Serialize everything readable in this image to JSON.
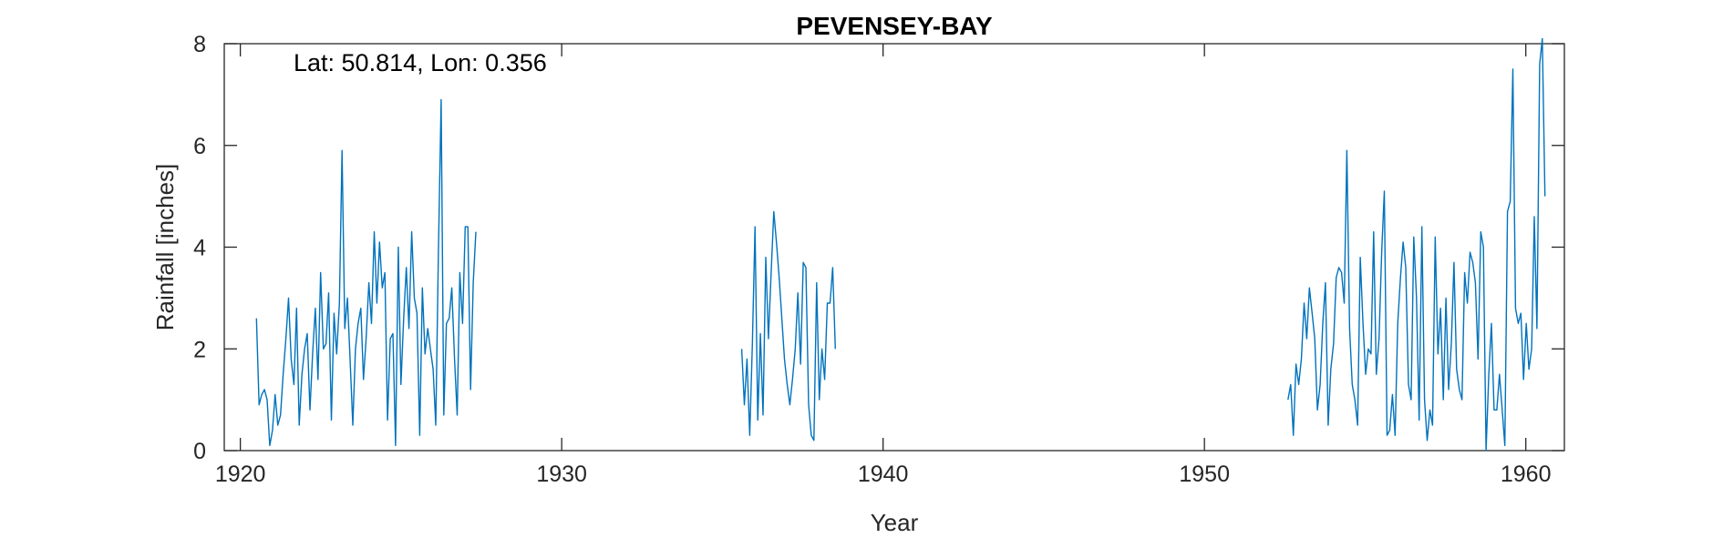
{
  "chart_data": {
    "type": "line",
    "title": "PEVENSEY-BAY",
    "xlabel": "Year",
    "ylabel": "Rainfall [inches]",
    "annotation": "Lat: 50.814, Lon: 0.356",
    "xlim": [
      1919.5,
      1961.2
    ],
    "ylim": [
      0,
      8
    ],
    "x_ticks": [
      1920,
      1930,
      1940,
      1950,
      1960
    ],
    "y_ticks": [
      0,
      2,
      4,
      6,
      8
    ],
    "grid": false,
    "legend": "none",
    "line_color": "#0072BD",
    "series": [
      {
        "segments": [
          {
            "start": 1920.5,
            "step": 0.0833,
            "values": [
              2.6,
              0.9,
              1.1,
              1.2,
              1.0,
              0.1,
              0.4,
              1.1,
              0.5,
              0.7,
              1.5,
              2.2,
              3.0,
              1.8,
              1.3,
              2.8,
              0.5,
              1.5,
              2.0,
              2.3,
              0.8,
              1.9,
              2.8,
              1.4,
              3.5,
              2.0,
              2.1,
              3.1,
              0.6,
              2.7,
              1.9,
              2.9,
              5.9,
              2.4,
              3.0,
              1.8,
              0.5,
              2.0,
              2.5,
              2.8,
              1.4,
              2.2,
              3.3,
              2.5,
              4.3,
              2.9,
              4.1,
              3.2,
              3.5,
              0.6,
              2.2,
              2.3,
              0.1,
              4.0,
              1.3,
              2.6,
              3.6,
              2.4,
              4.3,
              3.0,
              2.7,
              0.3,
              3.2,
              1.9,
              2.4,
              2.0,
              1.6,
              0.5,
              3.9,
              6.9,
              0.7,
              2.5,
              2.6,
              3.2,
              1.8,
              0.7,
              3.5,
              2.5,
              4.4,
              4.4,
              1.2,
              3.3,
              4.3
            ]
          },
          {
            "start": 1935.6,
            "step": 0.0833,
            "values": [
              2.0,
              0.9,
              1.8,
              0.3,
              2.1,
              4.4,
              0.6,
              2.3,
              0.7,
              3.8,
              2.2,
              3.5,
              4.7,
              4.1,
              3.4,
              2.6,
              1.8,
              1.3,
              0.9,
              1.4,
              2.0,
              3.1,
              1.7,
              3.7,
              3.6,
              0.9,
              0.3,
              0.2,
              3.3,
              1.0,
              2.0,
              1.4,
              2.9,
              2.9,
              3.6,
              2.0
            ]
          },
          {
            "start": 1952.6,
            "step": 0.0833,
            "values": [
              1.0,
              1.3,
              0.3,
              1.7,
              1.3,
              1.8,
              2.9,
              2.2,
              3.2,
              2.7,
              2.2,
              0.8,
              1.3,
              2.5,
              3.3,
              0.5,
              1.6,
              2.1,
              3.4,
              3.6,
              3.5,
              2.9,
              5.9,
              2.4,
              1.3,
              1.0,
              0.5,
              3.8,
              2.5,
              1.5,
              2.0,
              1.9,
              4.3,
              1.5,
              2.2,
              3.9,
              5.1,
              0.3,
              0.4,
              1.1,
              0.3,
              2.5,
              3.4,
              4.1,
              3.6,
              1.3,
              1.0,
              4.2,
              3.0,
              0.6,
              4.4,
              1.0,
              0.2,
              0.8,
              0.5,
              4.2,
              1.9,
              2.8,
              1.0,
              3.0,
              1.2,
              2.1,
              3.7,
              1.6,
              1.2,
              1.0,
              3.5,
              2.9,
              3.9,
              3.7,
              3.3,
              1.8,
              4.3,
              4.0,
              0.0,
              1.5,
              2.5,
              0.8,
              0.8,
              1.5,
              0.8,
              0.1,
              4.7,
              4.9,
              7.5,
              2.8,
              2.5,
              2.7,
              1.4,
              2.5,
              1.6,
              2.0,
              4.6,
              2.4,
              7.6,
              8.1,
              5.0
            ]
          }
        ]
      }
    ]
  }
}
